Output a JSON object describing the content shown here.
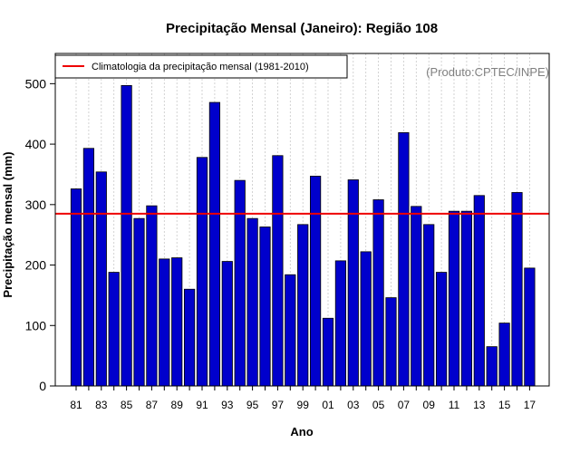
{
  "colors": {
    "bar_fill": "#0000cc",
    "bar_stroke": "#000000",
    "reference_line": "#ee0000",
    "grid": "#c8c8c8",
    "credit_text": "#808080"
  },
  "chart_data": {
    "type": "bar",
    "title": "Precipitação Mensal (Janeiro): Região 108",
    "xlabel": "Ano",
    "ylabel": "Precipitação mensal (mm)",
    "ylim": [
      0,
      550
    ],
    "yticks": [
      0,
      100,
      200,
      300,
      400,
      500
    ],
    "categories": [
      "81",
      "82",
      "83",
      "84",
      "85",
      "86",
      "87",
      "88",
      "89",
      "90",
      "91",
      "92",
      "93",
      "94",
      "95",
      "96",
      "97",
      "98",
      "99",
      "00",
      "01",
      "02",
      "03",
      "04",
      "05",
      "06",
      "07",
      "08",
      "09",
      "10",
      "11",
      "12",
      "13",
      "14",
      "15",
      "16",
      "17"
    ],
    "values": [
      326,
      393,
      354,
      188,
      497,
      277,
      298,
      210,
      212,
      160,
      378,
      469,
      206,
      340,
      277,
      263,
      381,
      184,
      267,
      347,
      112,
      207,
      341,
      222,
      308,
      146,
      419,
      297,
      267,
      188,
      289,
      289,
      315,
      65,
      104,
      320,
      195
    ],
    "xtick_labels": [
      "81",
      "83",
      "85",
      "87",
      "89",
      "91",
      "93",
      "95",
      "97",
      "99",
      "01",
      "03",
      "05",
      "07",
      "09",
      "11",
      "13",
      "15",
      "17"
    ],
    "grid": "vertical dotted",
    "reference_line": {
      "label": "Climatologia da precipitação mensal (1981-2010)",
      "value": 285
    },
    "legend_position": "top-left",
    "credit": "(Produto:CPTEC/INPE)"
  }
}
